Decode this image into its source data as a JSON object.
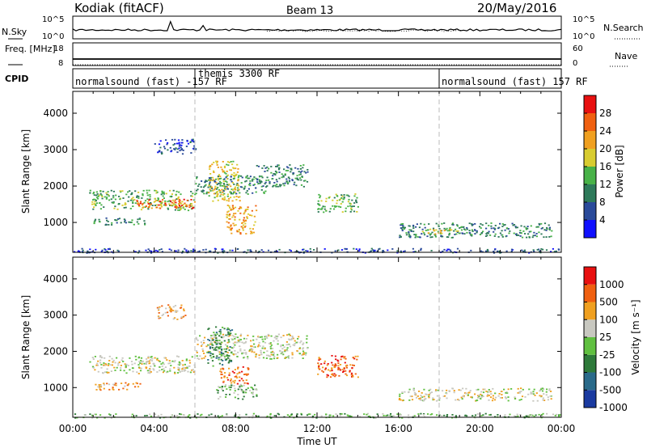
{
  "header": {
    "title": "Kodiak (fitACF)",
    "beam": "Beam 13",
    "date": "20/May/2016"
  },
  "chart_data": [
    {
      "type": "line",
      "panel": "noise / search-count summary",
      "left_label": "N.Sky",
      "right_label": "N.Search",
      "left_ticks": [
        "10^5",
        "10^0"
      ],
      "right_ticks": [
        "10^5",
        "10^0"
      ],
      "series": [
        {
          "name": "N.Sky",
          "style": "solid"
        },
        {
          "name": "N.Search",
          "style": "dotted"
        }
      ]
    },
    {
      "type": "line",
      "panel": "frequency / averages",
      "left_label": "Freq. [MHz]",
      "right_label": "Nave",
      "left_ticks": [
        "18",
        "8"
      ],
      "right_ticks": [
        "60",
        "0"
      ],
      "series": [
        {
          "name": "Freq.",
          "style": "solid"
        },
        {
          "name": "Nave",
          "style": "dotted"
        }
      ]
    },
    {
      "type": "annotation-strip",
      "panel": "CPID",
      "label": "CPID",
      "segments": [
        {
          "start_hour": 0,
          "end_hour": 6,
          "text": "normalsound (fast) -157 RF"
        },
        {
          "start_hour": 6,
          "end_hour": 18,
          "text": "themis 3300 RF"
        },
        {
          "start_hour": 18,
          "end_hour": 24,
          "text": "normalsound (fast) 157 RF"
        }
      ]
    },
    {
      "type": "heatmap",
      "panel": "power",
      "ylabel": "Slant Range [km]",
      "yticks": [
        "1000",
        "2000",
        "3000",
        "4000"
      ],
      "xlim": [
        0,
        24
      ],
      "ylim": [
        180,
        4600
      ],
      "colorbar": {
        "label": "Power [dB]",
        "ticks": [
          "4",
          "8",
          "12",
          "16",
          "20",
          "24",
          "28"
        ],
        "colors": [
          "#1010ff",
          "#2a4a9a",
          "#2e7a5a",
          "#48b248",
          "#d8cc30",
          "#f0a020",
          "#f06010",
          "#e81010"
        ]
      },
      "patches": [
        {
          "t0": 0.8,
          "t1": 6.0,
          "r0": 1350,
          "r1": 1900,
          "level": 3
        },
        {
          "t0": 3.0,
          "t1": 6.0,
          "r0": 1400,
          "r1": 1650,
          "level": 6
        },
        {
          "t0": 6.0,
          "t1": 9.5,
          "r0": 1800,
          "r1": 2300,
          "level": 2
        },
        {
          "t0": 6.6,
          "t1": 8.2,
          "r0": 1600,
          "r1": 2700,
          "level": 4
        },
        {
          "t0": 7.5,
          "t1": 9.0,
          "r0": 700,
          "r1": 1500,
          "level": 5
        },
        {
          "t0": 9.0,
          "t1": 11.5,
          "r0": 2000,
          "r1": 2600,
          "level": 2
        },
        {
          "t0": 12.0,
          "t1": 14.0,
          "r0": 1300,
          "r1": 1800,
          "level": 3
        },
        {
          "t0": 16.0,
          "t1": 23.5,
          "r0": 600,
          "r1": 1000,
          "level": 2
        },
        {
          "t0": 17.0,
          "t1": 19.0,
          "r0": 700,
          "r1": 850,
          "level": 4
        },
        {
          "t0": 4.0,
          "t1": 6.0,
          "r0": 2900,
          "r1": 3300,
          "level": 1
        },
        {
          "t0": 1.0,
          "t1": 3.5,
          "r0": 950,
          "r1": 1150,
          "level": 2
        },
        {
          "t0": 0.0,
          "t1": 24.0,
          "r0": 180,
          "r1": 300,
          "level": 1
        }
      ]
    },
    {
      "type": "heatmap",
      "panel": "velocity",
      "ylabel": "Slant Range [km]",
      "xlabel": "Time UT",
      "yticks": [
        "1000",
        "2000",
        "3000",
        "4000"
      ],
      "xticks": [
        "00:00",
        "04:00",
        "08:00",
        "12:00",
        "16:00",
        "20:00",
        "00:00"
      ],
      "xlim": [
        0,
        24
      ],
      "ylim": [
        180,
        4600
      ],
      "colorbar": {
        "label": "Velocity [m s⁻¹]",
        "ticks": [
          "1000",
          "500",
          "100",
          "25",
          "-25",
          "-100",
          "-500",
          "-1000"
        ],
        "colors": [
          "#1a3aa0",
          "#2a6a8a",
          "#2e7a3a",
          "#60c040",
          "#c8c8c0",
          "#f0a020",
          "#f06010",
          "#e81010"
        ]
      },
      "patches": [
        {
          "t0": 0.8,
          "t1": 6.0,
          "r0": 1400,
          "r1": 1900,
          "level": 4
        },
        {
          "t0": 6.0,
          "t1": 11.5,
          "r0": 1800,
          "r1": 2500,
          "level": 4
        },
        {
          "t0": 6.6,
          "t1": 7.8,
          "r0": 1600,
          "r1": 2700,
          "level": 2
        },
        {
          "t0": 7.2,
          "t1": 8.6,
          "r0": 1100,
          "r1": 1600,
          "level": 6
        },
        {
          "t0": 7.0,
          "t1": 9.0,
          "r0": 700,
          "r1": 1100,
          "level": 3
        },
        {
          "t0": 12.0,
          "t1": 14.0,
          "r0": 1300,
          "r1": 1900,
          "level": 6
        },
        {
          "t0": 16.0,
          "t1": 23.5,
          "r0": 650,
          "r1": 1000,
          "level": 4
        },
        {
          "t0": 4.0,
          "t1": 5.5,
          "r0": 2900,
          "r1": 3300,
          "level": 5
        },
        {
          "t0": 1.0,
          "t1": 3.5,
          "r0": 950,
          "r1": 1150,
          "level": 5
        },
        {
          "t0": 0.0,
          "t1": 24.0,
          "r0": 180,
          "r1": 300,
          "level": 3
        }
      ]
    }
  ]
}
